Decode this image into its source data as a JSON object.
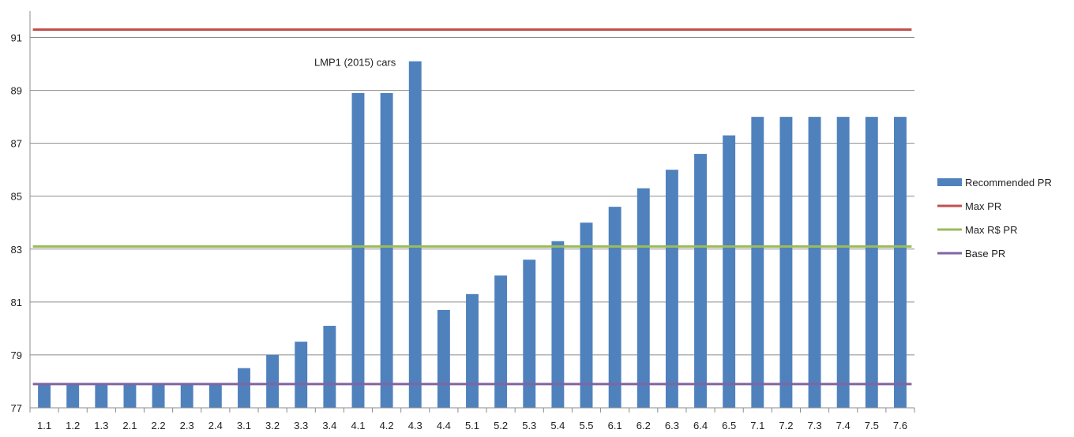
{
  "chart_data": {
    "type": "bar",
    "categories": [
      "1.1",
      "1.2",
      "1.3",
      "2.1",
      "2.2",
      "2.3",
      "2.4",
      "3.1",
      "3.2",
      "3.3",
      "3.4",
      "4.1",
      "4.2",
      "4.3",
      "4.4",
      "5.1",
      "5.2",
      "5.3",
      "5.4",
      "5.5",
      "6.1",
      "6.2",
      "6.3",
      "6.4",
      "6.5",
      "7.1",
      "7.2",
      "7.3",
      "7.4",
      "7.5",
      "7.6"
    ],
    "series": [
      {
        "name": "Recommended PR",
        "kind": "bar",
        "color": "#4f81bd",
        "values": [
          77.9,
          77.9,
          77.9,
          77.9,
          77.9,
          77.9,
          77.9,
          78.5,
          79.0,
          79.5,
          80.1,
          88.9,
          88.9,
          90.1,
          80.7,
          81.3,
          82.0,
          82.6,
          83.3,
          84.0,
          84.6,
          85.3,
          86.0,
          86.6,
          87.3,
          88.0,
          88.0,
          88.0,
          88.0,
          88.0,
          88.0
        ]
      },
      {
        "name": "Max PR",
        "kind": "line",
        "color": "#c0504d",
        "value": 91.3
      },
      {
        "name": "Max R$ PR",
        "kind": "line",
        "color": "#9bbb59",
        "value": 83.1
      },
      {
        "name": "Base PR",
        "kind": "line",
        "color": "#8064a2",
        "value": 77.9
      }
    ],
    "yticks": [
      "77",
      "79",
      "81",
      "83",
      "85",
      "87",
      "89",
      "91"
    ],
    "ylim": [
      77,
      92
    ],
    "grid": true,
    "legend_position": "right",
    "annotation": {
      "text": "LMP1 (2015) cars",
      "x": "4.2",
      "y": 90.1
    },
    "title": "",
    "xlabel": "",
    "ylabel": ""
  }
}
